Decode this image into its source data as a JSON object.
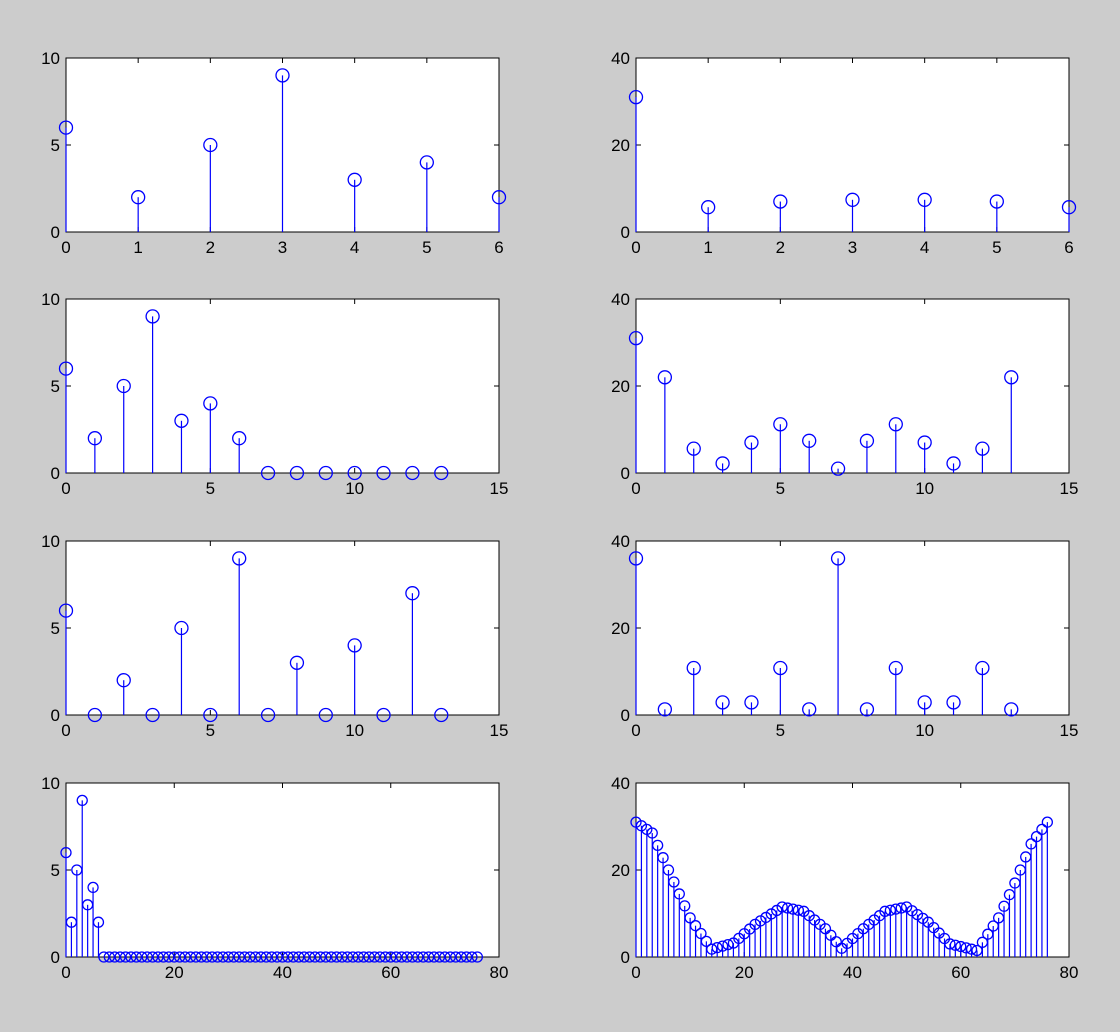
{
  "figure": {
    "background": "#cccccc",
    "axes_background": "#ffffff",
    "stem_color": "#0000ff",
    "layout": "4 rows x 2 columns of stem plots"
  },
  "chart_data": [
    {
      "type": "stem",
      "title": "",
      "xlabel": "",
      "ylabel": "",
      "xlim": [
        0,
        6
      ],
      "ylim": [
        0,
        10
      ],
      "xticks": [
        "0",
        "1",
        "2",
        "3",
        "4",
        "5",
        "6"
      ],
      "yticks": [
        "0",
        "5",
        "10"
      ],
      "x": [
        0,
        1,
        2,
        3,
        4,
        5,
        6
      ],
      "y": [
        6,
        2,
        5,
        9,
        3,
        4,
        2
      ]
    },
    {
      "type": "stem",
      "title": "",
      "xlabel": "",
      "ylabel": "",
      "xlim": [
        0,
        6
      ],
      "ylim": [
        0,
        40
      ],
      "xticks": [
        "0",
        "1",
        "2",
        "3",
        "4",
        "5",
        "6"
      ],
      "yticks": [
        "0",
        "20",
        "40"
      ],
      "x": [
        0,
        1,
        2,
        3,
        4,
        5,
        6
      ],
      "y": [
        31,
        5.7,
        7,
        7.4,
        7.4,
        7,
        5.7
      ]
    },
    {
      "type": "stem",
      "title": "",
      "xlabel": "",
      "ylabel": "",
      "xlim": [
        0,
        15
      ],
      "ylim": [
        0,
        10
      ],
      "xticks": [
        "0",
        "5",
        "10",
        "15"
      ],
      "yticks": [
        "0",
        "5",
        "10"
      ],
      "x": [
        0,
        1,
        2,
        3,
        4,
        5,
        6,
        7,
        8,
        9,
        10,
        11,
        12,
        13
      ],
      "y": [
        6,
        2,
        5,
        9,
        3,
        4,
        2,
        0,
        0,
        0,
        0,
        0,
        0,
        0
      ]
    },
    {
      "type": "stem",
      "title": "",
      "xlabel": "",
      "ylabel": "",
      "xlim": [
        0,
        15
      ],
      "ylim": [
        0,
        40
      ],
      "xticks": [
        "0",
        "5",
        "10",
        "15"
      ],
      "yticks": [
        "0",
        "20",
        "40"
      ],
      "x": [
        0,
        1,
        2,
        3,
        4,
        5,
        6,
        7,
        8,
        9,
        10,
        11,
        12,
        13
      ],
      "y": [
        31,
        22,
        5.6,
        2.2,
        7,
        11.2,
        7.4,
        1,
        7.4,
        11.2,
        7,
        2.2,
        5.6,
        22
      ]
    },
    {
      "type": "stem",
      "title": "",
      "xlabel": "",
      "ylabel": "",
      "xlim": [
        0,
        15
      ],
      "ylim": [
        0,
        10
      ],
      "xticks": [
        "0",
        "5",
        "10",
        "15"
      ],
      "yticks": [
        "0",
        "5",
        "10"
      ],
      "x": [
        0,
        1,
        2,
        3,
        4,
        5,
        6,
        7,
        8,
        9,
        10,
        11,
        12,
        13
      ],
      "y": [
        6,
        0,
        2,
        0,
        5,
        0,
        9,
        0,
        3,
        0,
        4,
        0,
        7,
        0
      ]
    },
    {
      "type": "stem",
      "title": "",
      "xlabel": "",
      "ylabel": "",
      "xlim": [
        0,
        15
      ],
      "ylim": [
        0,
        40
      ],
      "xticks": [
        "0",
        "5",
        "10",
        "15"
      ],
      "yticks": [
        "0",
        "20",
        "40"
      ],
      "x": [
        0,
        1,
        2,
        3,
        4,
        5,
        6,
        7,
        8,
        9,
        10,
        11,
        12,
        13
      ],
      "y": [
        36,
        1.3,
        10.8,
        2.9,
        2.9,
        10.8,
        1.3,
        36,
        1.3,
        10.8,
        2.9,
        2.9,
        10.8,
        1.3
      ]
    },
    {
      "type": "stem",
      "title": "",
      "xlabel": "",
      "ylabel": "",
      "xlim": [
        0,
        80
      ],
      "ylim": [
        0,
        10
      ],
      "xticks": [
        "0",
        "20",
        "40",
        "60",
        "80"
      ],
      "yticks": [
        "0",
        "5",
        "10"
      ],
      "n_points": 77,
      "nonzero": {
        "x": [
          0,
          1,
          2,
          3,
          4,
          5,
          6
        ],
        "y": [
          6,
          2,
          5,
          9,
          3,
          4,
          2
        ]
      },
      "rest_value": 0
    },
    {
      "type": "stem",
      "title": "",
      "xlabel": "",
      "ylabel": "",
      "xlim": [
        0,
        80
      ],
      "ylim": [
        0,
        40
      ],
      "xticks": [
        "0",
        "20",
        "40",
        "60",
        "80"
      ],
      "yticks": [
        "0",
        "20",
        "40"
      ],
      "n_points": 77,
      "x_range": [
        0,
        76
      ],
      "y_sample": {
        "x": [
          0,
          3,
          6,
          10,
          14,
          18,
          22,
          27,
          31,
          35,
          38,
          42,
          46,
          50,
          54,
          58,
          63,
          67,
          70,
          73,
          76
        ],
        "y": [
          31,
          28.5,
          20,
          9,
          1.8,
          3.2,
          7.5,
          11.5,
          10.5,
          6.5,
          2,
          6.5,
          10.5,
          11.5,
          8,
          3,
          1.5,
          9,
          17,
          26,
          31
        ]
      }
    }
  ]
}
